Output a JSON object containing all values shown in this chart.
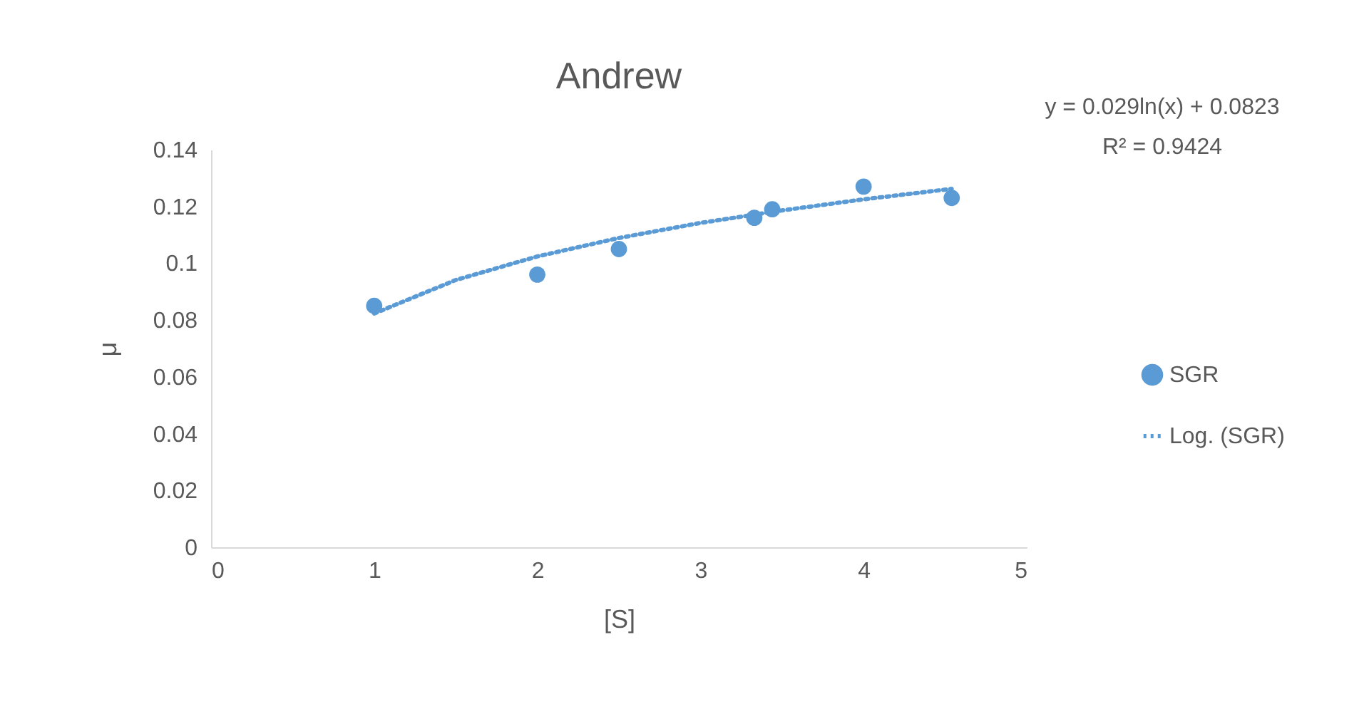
{
  "chart_data": {
    "type": "scatter",
    "title": "Andrew",
    "xlabel": "[S]",
    "ylabel": "μ",
    "annotations": [
      "y = 0.029ln(x) + 0.0823",
      "R² = 0.9424"
    ],
    "series": [
      {
        "name": "SGR",
        "color": "#5b9bd5",
        "marker": "circle",
        "x": [
          1,
          2,
          2.5,
          3.33,
          3.44,
          4,
          4.54
        ],
        "values": [
          0.085,
          0.096,
          0.105,
          0.116,
          0.119,
          0.127,
          0.123
        ]
      },
      {
        "name": "Log. (SGR)",
        "type": "line",
        "color": "#5b9bd5",
        "marker": "none",
        "line_style": "dotted",
        "x": [
          1,
          1.5,
          2,
          2.5,
          3,
          3.5,
          4,
          4.54
        ],
        "values": [
          0.0823,
          0.0941,
          0.1024,
          0.1089,
          0.1142,
          0.1186,
          0.1225,
          0.1262
        ]
      }
    ],
    "xlim": [
      0,
      5
    ],
    "xticks": [
      0,
      1,
      2,
      3,
      4,
      5
    ],
    "ylim": [
      0,
      0.14
    ],
    "yticks": [
      0,
      0.02,
      0.04,
      0.06,
      0.08,
      0.1,
      0.12,
      0.14
    ],
    "grid": false,
    "legend": "right"
  }
}
